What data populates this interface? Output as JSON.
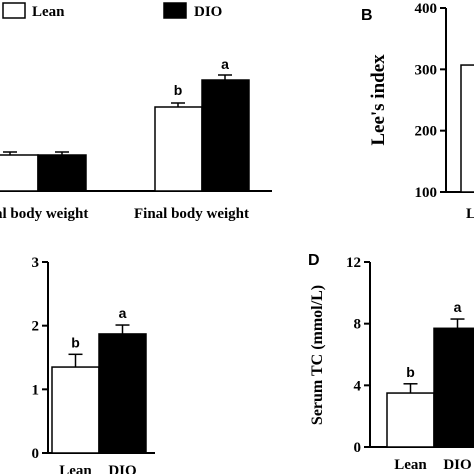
{
  "legend": {
    "items": [
      {
        "name": "Lean",
        "color": "#ffffff"
      },
      {
        "name": "DIO",
        "color": "#000000"
      }
    ]
  },
  "chart_data": [
    {
      "panel": "",
      "type": "bar",
      "categories": [
        "al body weight",
        "Final body weight"
      ],
      "series": [
        {
          "name": "Lean",
          "values": [
            null,
            null
          ],
          "errors": [
            null,
            null
          ]
        },
        {
          "name": "DIO",
          "values": [
            null,
            null
          ],
          "errors": [
            null,
            null
          ]
        }
      ],
      "significance": [
        [
          "",
          ""
        ],
        [
          "b",
          "a"
        ]
      ],
      "xlabel": "",
      "ylabel": ""
    },
    {
      "panel": "B",
      "type": "bar",
      "categories": [
        "L"
      ],
      "series": [
        {
          "name": "Lean",
          "values": [
            307
          ]
        }
      ],
      "yticks": [
        100,
        200,
        300,
        400
      ],
      "ylim": [
        100,
        400
      ],
      "ylabel": "Lee's index"
    },
    {
      "panel": "",
      "type": "bar",
      "categories": [
        "Lean",
        "DIO"
      ],
      "values": [
        1.35,
        1.87
      ],
      "errors": [
        0.2,
        0.14
      ],
      "significance": [
        "b",
        "a"
      ],
      "yticks": [
        0,
        1,
        2,
        3
      ],
      "ylim": [
        0,
        3
      ],
      "ylabel": ""
    },
    {
      "panel": "D",
      "type": "bar",
      "categories": [
        "Lean",
        "DIO"
      ],
      "values": [
        3.5,
        7.7
      ],
      "errors": [
        0.6,
        0.6
      ],
      "significance": [
        "b",
        "a"
      ],
      "yticks": [
        0,
        4,
        8,
        12
      ],
      "ylim": [
        0,
        12
      ],
      "ylabel": "Serum TC (mmol/L)"
    }
  ]
}
